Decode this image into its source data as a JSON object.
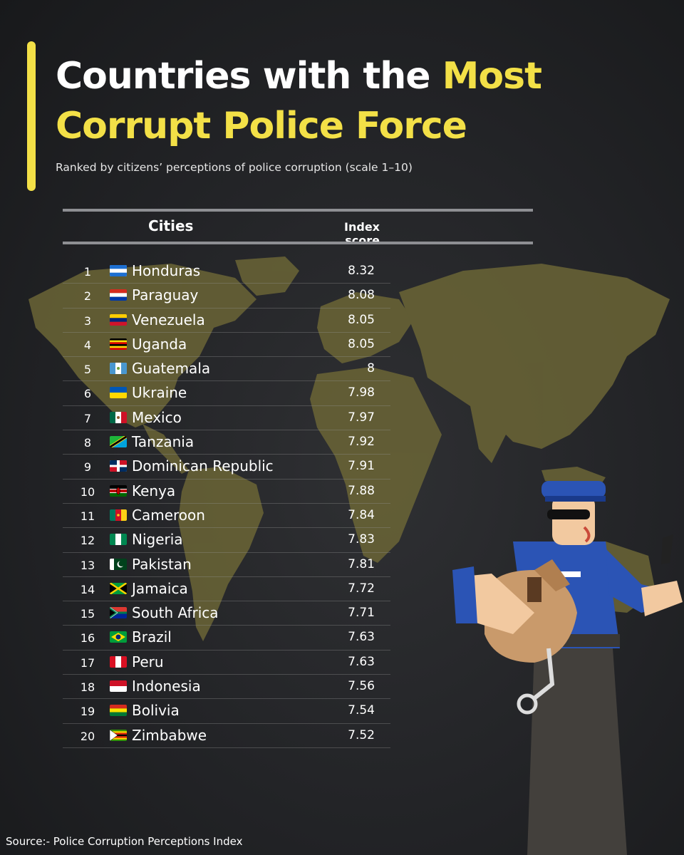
{
  "title": {
    "line1_white": "Countries with the ",
    "line1_yellow": "Most",
    "line2_yellow": "Corrupt Police Force"
  },
  "subtitle": "Ranked by citizens’ perceptions of police corruption (scale 1–10)",
  "source": "Source:- Police Corruption Perceptions Index",
  "colors": {
    "accent": "#f3e047",
    "background": "#222326",
    "map": "#6b6536"
  },
  "chart_data": {
    "type": "table",
    "columns": [
      "Cities",
      "Index score"
    ],
    "rows": [
      {
        "rank": "1",
        "country": "Honduras",
        "flag": "honduras-flag-icon",
        "score": "8.32"
      },
      {
        "rank": "2",
        "country": "Paraguay",
        "flag": "paraguay-flag-icon",
        "score": "8.08"
      },
      {
        "rank": "3",
        "country": "Venezuela",
        "flag": "venezuela-flag-icon",
        "score": "8.05"
      },
      {
        "rank": "4",
        "country": "Uganda",
        "flag": "uganda-flag-icon",
        "score": "8.05"
      },
      {
        "rank": "5",
        "country": "Guatemala",
        "flag": "guatemala-flag-icon",
        "score": "8"
      },
      {
        "rank": "6",
        "country": "Ukraine",
        "flag": "ukraine-flag-icon",
        "score": "7.98"
      },
      {
        "rank": "7",
        "country": "Mexico",
        "flag": "mexico-flag-icon",
        "score": "7.97"
      },
      {
        "rank": "8",
        "country": "Tanzania",
        "flag": "tanzania-flag-icon",
        "score": "7.92"
      },
      {
        "rank": "9",
        "country": "Dominican Republic",
        "flag": "dominican-republic-flag-icon",
        "score": "7.91"
      },
      {
        "rank": "10",
        "country": "Kenya",
        "flag": "kenya-flag-icon",
        "score": "7.88"
      },
      {
        "rank": "11",
        "country": "Cameroon",
        "flag": "cameroon-flag-icon",
        "score": "7.84"
      },
      {
        "rank": "12",
        "country": "Nigeria",
        "flag": "nigeria-flag-icon",
        "score": "7.83"
      },
      {
        "rank": "13",
        "country": "Pakistan",
        "flag": "pakistan-flag-icon",
        "score": "7.81"
      },
      {
        "rank": "14",
        "country": "Jamaica",
        "flag": "jamaica-flag-icon",
        "score": "7.72"
      },
      {
        "rank": "15",
        "country": "South Africa",
        "flag": "south-africa-flag-icon",
        "score": "7.71"
      },
      {
        "rank": "16",
        "country": "Brazil",
        "flag": "brazil-flag-icon",
        "score": "7.63"
      },
      {
        "rank": "17",
        "country": "Peru",
        "flag": "peru-flag-icon",
        "score": "7.63"
      },
      {
        "rank": "18",
        "country": "Indonesia",
        "flag": "indonesia-flag-icon",
        "score": "7.56"
      },
      {
        "rank": "19",
        "country": "Bolivia",
        "flag": "bolivia-flag-icon",
        "score": "7.54"
      },
      {
        "rank": "20",
        "country": "Zimbabwe",
        "flag": "zimbabwe-flag-icon",
        "score": "7.52"
      }
    ]
  }
}
